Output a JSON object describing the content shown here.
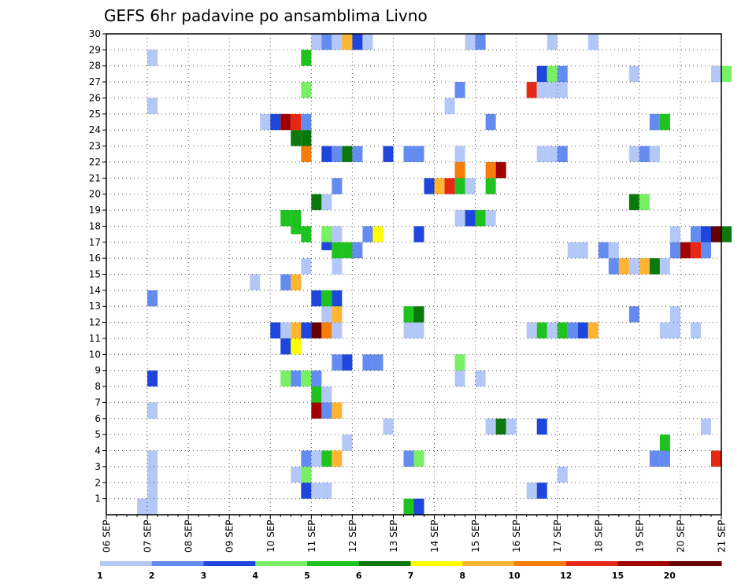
{
  "chart_data": {
    "type": "heatmap",
    "title": "GEFS 6hr padavine po ansamblima Livno",
    "xlabel": "",
    "ylabel": "",
    "x_ticks": [
      "06 SEP",
      "07 SEP",
      "08 SEP",
      "09 SEP",
      "10 SEP",
      "11 SEP",
      "12 SEP",
      "13 SEP",
      "14 SEP",
      "15 SEP",
      "16 SEP",
      "17 SEP",
      "18 SEP",
      "19 SEP",
      "20 SEP",
      "21 SEP"
    ],
    "y_ticks": [
      "1",
      "2",
      "3",
      "4",
      "5",
      "6",
      "7",
      "8",
      "9",
      "10",
      "11",
      "12",
      "13",
      "14",
      "15",
      "16",
      "17",
      "18",
      "19",
      "20",
      "21",
      "22",
      "23",
      "24",
      "25",
      "26",
      "27",
      "28",
      "29",
      "30"
    ],
    "y_range": [
      0,
      30
    ],
    "x_range_days": [
      0,
      15
    ],
    "grid": true,
    "colorbar": {
      "placement": "bottom",
      "colors": [
        "#b4c8f8",
        "#648cf0",
        "#1e46dc",
        "#78f064",
        "#1ec31e",
        "#0a780a",
        "#ffff00",
        "#ffb432",
        "#f57d0a",
        "#e62814",
        "#a00000",
        "#640000"
      ],
      "labels": [
        "1",
        "2",
        "3",
        "4",
        "5",
        "6",
        "7",
        "8",
        "10",
        "12",
        "15",
        "20"
      ]
    },
    "cells": [
      {
        "x": 0.75,
        "y": 0,
        "c": 0
      },
      {
        "x": 1.0,
        "y": 0,
        "c": 0
      },
      {
        "x": 7.25,
        "y": 0,
        "c": 4
      },
      {
        "x": 7.5,
        "y": 0,
        "c": 2
      },
      {
        "x": 1.0,
        "y": 1,
        "c": 0
      },
      {
        "x": 4.75,
        "y": 1,
        "c": 2
      },
      {
        "x": 5.0,
        "y": 1,
        "c": 0
      },
      {
        "x": 5.25,
        "y": 1,
        "c": 0
      },
      {
        "x": 10.25,
        "y": 1,
        "c": 0
      },
      {
        "x": 10.5,
        "y": 1,
        "c": 2
      },
      {
        "x": 1.0,
        "y": 2,
        "c": 0
      },
      {
        "x": 4.5,
        "y": 2,
        "c": 0
      },
      {
        "x": 4.75,
        "y": 2,
        "c": 3
      },
      {
        "x": 11.0,
        "y": 2,
        "c": 0
      },
      {
        "x": 1.0,
        "y": 3,
        "c": 0
      },
      {
        "x": 4.75,
        "y": 3,
        "c": 1
      },
      {
        "x": 5.0,
        "y": 3,
        "c": 0
      },
      {
        "x": 5.25,
        "y": 3,
        "c": 4
      },
      {
        "x": 5.5,
        "y": 3,
        "c": 7
      },
      {
        "x": 7.25,
        "y": 3,
        "c": 1
      },
      {
        "x": 7.5,
        "y": 3,
        "c": 3
      },
      {
        "x": 13.25,
        "y": 3,
        "c": 1
      },
      {
        "x": 13.5,
        "y": 3,
        "c": 1
      },
      {
        "x": 14.75,
        "y": 3,
        "c": 9
      },
      {
        "x": 5.75,
        "y": 4,
        "c": 0
      },
      {
        "x": 13.5,
        "y": 4,
        "c": 4
      },
      {
        "x": 6.75,
        "y": 5,
        "c": 0
      },
      {
        "x": 9.25,
        "y": 5,
        "c": 0
      },
      {
        "x": 9.5,
        "y": 5,
        "c": 5
      },
      {
        "x": 9.75,
        "y": 5,
        "c": 0
      },
      {
        "x": 10.5,
        "y": 5,
        "c": 2
      },
      {
        "x": 14.5,
        "y": 5,
        "c": 0
      },
      {
        "x": 1.0,
        "y": 6,
        "c": 0
      },
      {
        "x": 5.0,
        "y": 6,
        "c": 10
      },
      {
        "x": 5.25,
        "y": 6,
        "c": 1
      },
      {
        "x": 5.5,
        "y": 6,
        "c": 7
      },
      {
        "x": 5.0,
        "y": 7,
        "c": 4
      },
      {
        "x": 5.25,
        "y": 7,
        "c": 0
      },
      {
        "x": 1.0,
        "y": 8,
        "c": 2
      },
      {
        "x": 4.25,
        "y": 8,
        "c": 3
      },
      {
        "x": 4.5,
        "y": 8,
        "c": 1
      },
      {
        "x": 4.75,
        "y": 8,
        "c": 3
      },
      {
        "x": 5.0,
        "y": 8,
        "c": 1
      },
      {
        "x": 8.5,
        "y": 8,
        "c": 0
      },
      {
        "x": 9.0,
        "y": 8,
        "c": 0
      },
      {
        "x": 5.5,
        "y": 9,
        "c": 1
      },
      {
        "x": 5.75,
        "y": 9,
        "c": 2
      },
      {
        "x": 6.25,
        "y": 9,
        "c": 1
      },
      {
        "x": 6.5,
        "y": 9,
        "c": 1
      },
      {
        "x": 8.5,
        "y": 9,
        "c": 3
      },
      {
        "x": 4.25,
        "y": 10,
        "c": 2
      },
      {
        "x": 4.5,
        "y": 10,
        "c": 6
      },
      {
        "x": 4.0,
        "y": 11,
        "c": 2
      },
      {
        "x": 4.25,
        "y": 11,
        "c": 0
      },
      {
        "x": 4.5,
        "y": 11,
        "c": 7
      },
      {
        "x": 4.75,
        "y": 11,
        "c": 2
      },
      {
        "x": 5.0,
        "y": 11,
        "c": 11
      },
      {
        "x": 5.25,
        "y": 11,
        "c": 8
      },
      {
        "x": 5.5,
        "y": 11,
        "c": 0
      },
      {
        "x": 7.25,
        "y": 11,
        "c": 0
      },
      {
        "x": 7.5,
        "y": 11,
        "c": 0
      },
      {
        "x": 10.25,
        "y": 11,
        "c": 0
      },
      {
        "x": 10.5,
        "y": 11,
        "c": 4
      },
      {
        "x": 10.75,
        "y": 11,
        "c": 0
      },
      {
        "x": 11.0,
        "y": 11,
        "c": 4
      },
      {
        "x": 11.25,
        "y": 11,
        "c": 1
      },
      {
        "x": 11.5,
        "y": 11,
        "c": 2
      },
      {
        "x": 11.75,
        "y": 11,
        "c": 7
      },
      {
        "x": 13.5,
        "y": 11,
        "c": 0
      },
      {
        "x": 13.75,
        "y": 11,
        "c": 0
      },
      {
        "x": 14.25,
        "y": 11,
        "c": 0
      },
      {
        "x": 5.25,
        "y": 12,
        "c": 0
      },
      {
        "x": 5.5,
        "y": 12,
        "c": 7
      },
      {
        "x": 7.25,
        "y": 12,
        "c": 4
      },
      {
        "x": 7.5,
        "y": 12,
        "c": 5
      },
      {
        "x": 12.75,
        "y": 12,
        "c": 1
      },
      {
        "x": 13.75,
        "y": 12,
        "c": 0
      },
      {
        "x": 1.0,
        "y": 13,
        "c": 1
      },
      {
        "x": 5.0,
        "y": 13,
        "c": 2
      },
      {
        "x": 5.25,
        "y": 13,
        "c": 4
      },
      {
        "x": 5.5,
        "y": 13,
        "c": 2
      },
      {
        "x": 3.5,
        "y": 14,
        "c": 0
      },
      {
        "x": 4.25,
        "y": 14,
        "c": 1
      },
      {
        "x": 4.5,
        "y": 14,
        "c": 7
      },
      {
        "x": 4.75,
        "y": 15,
        "c": 0
      },
      {
        "x": 5.5,
        "y": 15,
        "c": 0
      },
      {
        "x": 12.25,
        "y": 15,
        "c": 1
      },
      {
        "x": 12.5,
        "y": 15,
        "c": 7
      },
      {
        "x": 12.75,
        "y": 15,
        "c": 0
      },
      {
        "x": 13.0,
        "y": 15,
        "c": 7
      },
      {
        "x": 13.25,
        "y": 15,
        "c": 5
      },
      {
        "x": 13.5,
        "y": 15,
        "c": 0
      },
      {
        "x": 5.5,
        "y": 16,
        "c": 4
      },
      {
        "x": 5.75,
        "y": 16,
        "c": 4
      },
      {
        "x": 6.0,
        "y": 16,
        "c": 1
      },
      {
        "x": 11.25,
        "y": 16,
        "c": 0
      },
      {
        "x": 11.5,
        "y": 16,
        "c": 0
      },
      {
        "x": 12.0,
        "y": 16,
        "c": 1
      },
      {
        "x": 12.25,
        "y": 16,
        "c": 0
      },
      {
        "x": 13.75,
        "y": 16,
        "c": 1
      },
      {
        "x": 14.0,
        "y": 16,
        "c": 10
      },
      {
        "x": 14.25,
        "y": 16,
        "c": 9
      },
      {
        "x": 14.5,
        "y": 16,
        "c": 1
      },
      {
        "x": 5.25,
        "y": 16.5,
        "c": 2
      },
      {
        "x": 4.75,
        "y": 17,
        "c": 4
      },
      {
        "x": 5.25,
        "y": 17,
        "c": 3
      },
      {
        "x": 5.5,
        "y": 17,
        "c": 0
      },
      {
        "x": 6.25,
        "y": 17,
        "c": 1
      },
      {
        "x": 6.5,
        "y": 17,
        "c": 6
      },
      {
        "x": 7.5,
        "y": 17,
        "c": 2
      },
      {
        "x": 13.75,
        "y": 17,
        "c": 0
      },
      {
        "x": 14.25,
        "y": 17,
        "c": 1
      },
      {
        "x": 14.5,
        "y": 17,
        "c": 2
      },
      {
        "x": 14.75,
        "y": 17,
        "c": 11
      },
      {
        "x": 15.0,
        "y": 17,
        "c": 5
      },
      {
        "x": 4.5,
        "y": 17.5,
        "c": 4
      },
      {
        "x": 4.25,
        "y": 18,
        "c": 4
      },
      {
        "x": 4.5,
        "y": 18,
        "c": 4
      },
      {
        "x": 8.5,
        "y": 18,
        "c": 0
      },
      {
        "x": 8.75,
        "y": 18,
        "c": 2
      },
      {
        "x": 9.0,
        "y": 18,
        "c": 4
      },
      {
        "x": 9.25,
        "y": 18,
        "c": 0
      },
      {
        "x": 5.0,
        "y": 19,
        "c": 5
      },
      {
        "x": 5.25,
        "y": 19,
        "c": 0
      },
      {
        "x": 12.75,
        "y": 19,
        "c": 5
      },
      {
        "x": 13.0,
        "y": 19,
        "c": 3
      },
      {
        "x": 5.5,
        "y": 20,
        "c": 1
      },
      {
        "x": 7.75,
        "y": 20,
        "c": 2
      },
      {
        "x": 8.0,
        "y": 20,
        "c": 7
      },
      {
        "x": 8.25,
        "y": 20,
        "c": 9
      },
      {
        "x": 8.5,
        "y": 20,
        "c": 4
      },
      {
        "x": 8.75,
        "y": 20,
        "c": 0
      },
      {
        "x": 9.25,
        "y": 20,
        "c": 4
      },
      {
        "x": 8.5,
        "y": 21,
        "c": 8
      },
      {
        "x": 9.25,
        "y": 21,
        "c": 8
      },
      {
        "x": 9.5,
        "y": 21,
        "c": 10
      },
      {
        "x": 4.75,
        "y": 22,
        "c": 8
      },
      {
        "x": 5.25,
        "y": 22,
        "c": 2
      },
      {
        "x": 5.5,
        "y": 22,
        "c": 1
      },
      {
        "x": 5.75,
        "y": 22,
        "c": 5
      },
      {
        "x": 6.0,
        "y": 22,
        "c": 1
      },
      {
        "x": 6.75,
        "y": 22,
        "c": 2
      },
      {
        "x": 7.25,
        "y": 22,
        "c": 1
      },
      {
        "x": 7.5,
        "y": 22,
        "c": 1
      },
      {
        "x": 8.5,
        "y": 22,
        "c": 0
      },
      {
        "x": 10.5,
        "y": 22,
        "c": 0
      },
      {
        "x": 10.75,
        "y": 22,
        "c": 0
      },
      {
        "x": 11.0,
        "y": 22,
        "c": 1
      },
      {
        "x": 12.75,
        "y": 22,
        "c": 0
      },
      {
        "x": 13.0,
        "y": 22,
        "c": 1
      },
      {
        "x": 13.25,
        "y": 22,
        "c": 0
      },
      {
        "x": 4.5,
        "y": 23,
        "c": 5
      },
      {
        "x": 4.75,
        "y": 23,
        "c": 5
      },
      {
        "x": 3.75,
        "y": 24,
        "c": 0
      },
      {
        "x": 4.0,
        "y": 24,
        "c": 2
      },
      {
        "x": 4.25,
        "y": 24,
        "c": 10
      },
      {
        "x": 4.5,
        "y": 24,
        "c": 9
      },
      {
        "x": 4.75,
        "y": 24,
        "c": 1
      },
      {
        "x": 9.25,
        "y": 24,
        "c": 1
      },
      {
        "x": 13.25,
        "y": 24,
        "c": 1
      },
      {
        "x": 13.5,
        "y": 24,
        "c": 4
      },
      {
        "x": 1.0,
        "y": 25,
        "c": 0
      },
      {
        "x": 8.25,
        "y": 25,
        "c": 0
      },
      {
        "x": 4.75,
        "y": 26,
        "c": 3
      },
      {
        "x": 8.5,
        "y": 26,
        "c": 1
      },
      {
        "x": 10.25,
        "y": 26,
        "c": 9
      },
      {
        "x": 10.5,
        "y": 26,
        "c": 0
      },
      {
        "x": 10.75,
        "y": 26,
        "c": 0
      },
      {
        "x": 11.0,
        "y": 26,
        "c": 0
      },
      {
        "x": 10.5,
        "y": 27,
        "c": 2
      },
      {
        "x": 10.75,
        "y": 27,
        "c": 3
      },
      {
        "x": 11.0,
        "y": 27,
        "c": 1
      },
      {
        "x": 12.75,
        "y": 27,
        "c": 0
      },
      {
        "x": 14.75,
        "y": 27,
        "c": 0
      },
      {
        "x": 15.0,
        "y": 27,
        "c": 3
      },
      {
        "x": 1.0,
        "y": 28,
        "c": 0
      },
      {
        "x": 4.75,
        "y": 28,
        "c": 4
      },
      {
        "x": 5.0,
        "y": 29,
        "c": 0
      },
      {
        "x": 5.25,
        "y": 29,
        "c": 1
      },
      {
        "x": 5.5,
        "y": 29,
        "c": 0
      },
      {
        "x": 5.75,
        "y": 29,
        "c": 7
      },
      {
        "x": 6.0,
        "y": 29,
        "c": 2
      },
      {
        "x": 6.25,
        "y": 29,
        "c": 0
      },
      {
        "x": 8.75,
        "y": 29,
        "c": 0
      },
      {
        "x": 9.0,
        "y": 29,
        "c": 1
      },
      {
        "x": 10.75,
        "y": 29,
        "c": 0
      },
      {
        "x": 11.75,
        "y": 29,
        "c": 0
      }
    ]
  }
}
